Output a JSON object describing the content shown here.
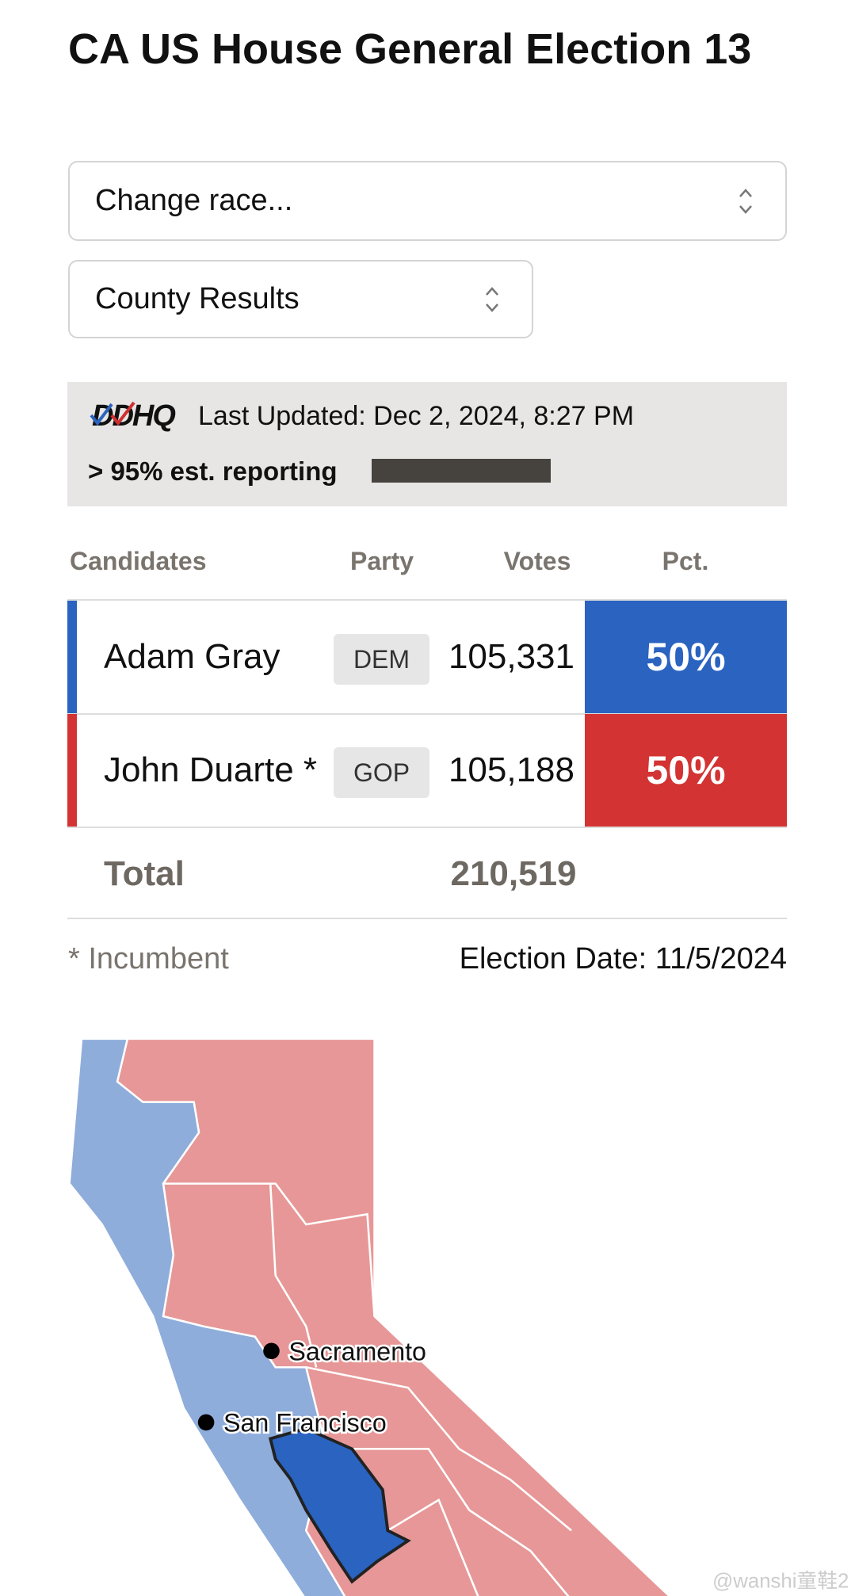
{
  "header": {
    "title": "CA US House General Election 13"
  },
  "controls": {
    "race_select": "Change race...",
    "view_select": "County Results"
  },
  "status": {
    "source": "DDHQ",
    "last_updated": "Last Updated: Dec 2, 2024, 8:27 PM",
    "reporting": "> 95% est. reporting"
  },
  "table": {
    "columns": [
      "Candidates",
      "Party",
      "Votes",
      "Pct."
    ],
    "rows": [
      {
        "name": "Adam Gray",
        "party": "DEM",
        "votes": "105,331",
        "pct": "50%"
      },
      {
        "name": "John Duarte *",
        "party": "GOP",
        "votes": "105,188",
        "pct": "50%"
      }
    ],
    "total": {
      "label": "Total",
      "votes": "210,519"
    }
  },
  "footer": {
    "note": "* Incumbent",
    "election_date": "Election Date: 11/5/2024"
  },
  "map": {
    "cities": [
      "Sacramento",
      "San Francisco"
    ]
  },
  "watermark": "@wanshi童鞋2"
}
